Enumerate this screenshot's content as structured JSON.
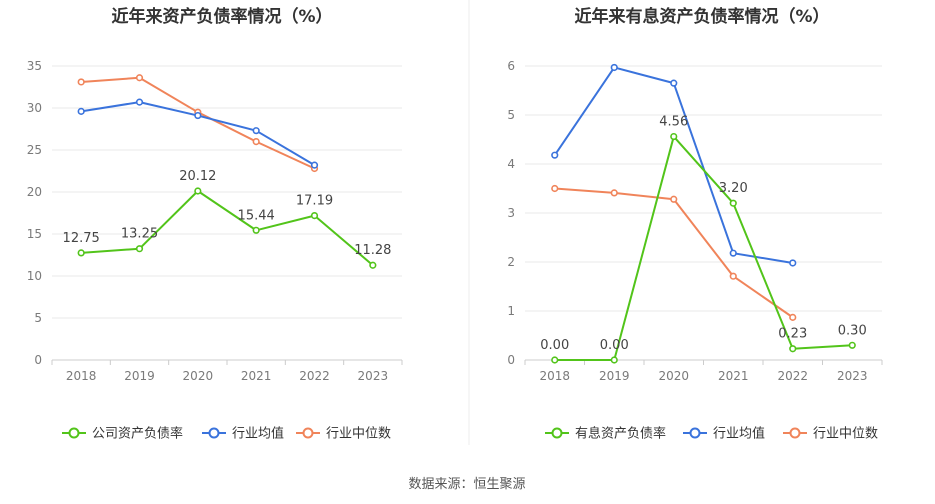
{
  "source": "数据来源：恒生聚源",
  "colors": {
    "company": "#52c41a",
    "industry_avg": "#3a73dc",
    "industry_median": "#f0845a",
    "grid": "#e8e8e8",
    "axis": "#cccccc"
  },
  "chart_data": [
    {
      "type": "line",
      "title": "近年来资产负债率情况（%）",
      "categories": [
        "2018",
        "2019",
        "2020",
        "2021",
        "2022",
        "2023"
      ],
      "ylim": [
        0,
        35
      ],
      "yticks": [
        0,
        5,
        10,
        15,
        20,
        25,
        30,
        35
      ],
      "grid": true,
      "legend_position": "bottom",
      "series": [
        {
          "name": "公司资产负债率",
          "key": "company",
          "values": [
            12.75,
            13.25,
            20.12,
            15.44,
            17.19,
            11.28
          ],
          "labels": [
            "12.75",
            "13.25",
            "20.12",
            "15.44",
            "17.19",
            "11.28"
          ]
        },
        {
          "name": "行业均值",
          "key": "industry_avg",
          "values": [
            29.6,
            30.7,
            29.1,
            27.3,
            23.2,
            null
          ]
        },
        {
          "name": "行业中位数",
          "key": "industry_median",
          "values": [
            33.1,
            33.6,
            29.5,
            26.0,
            22.8,
            null
          ]
        }
      ]
    },
    {
      "type": "line",
      "title": "近年来有息资产负债率情况（%）",
      "categories": [
        "2018",
        "2019",
        "2020",
        "2021",
        "2022",
        "2023"
      ],
      "ylim": [
        0,
        6
      ],
      "yticks": [
        0,
        1,
        2,
        3,
        4,
        5,
        6
      ],
      "grid": true,
      "legend_position": "bottom",
      "series": [
        {
          "name": "有息资产负债率",
          "key": "company",
          "values": [
            0.0,
            0.0,
            4.56,
            3.2,
            0.23,
            0.3
          ],
          "labels": [
            "0.00",
            "0.00",
            "4.56",
            "3.20",
            "0.23",
            "0.30"
          ]
        },
        {
          "name": "行业均值",
          "key": "industry_avg",
          "values": [
            4.18,
            5.97,
            5.65,
            2.18,
            1.98,
            null
          ]
        },
        {
          "name": "行业中位数",
          "key": "industry_median",
          "values": [
            3.5,
            3.41,
            3.28,
            1.71,
            0.87,
            null
          ]
        }
      ]
    }
  ]
}
